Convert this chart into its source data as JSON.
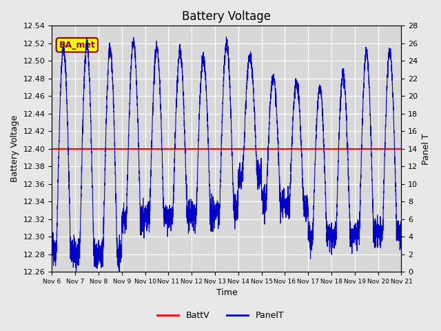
{
  "title": "Battery Voltage",
  "xlabel": "Time",
  "ylabel_left": "Battery Voltage",
  "ylabel_right": "Panel T",
  "ylim_left": [
    12.26,
    12.54
  ],
  "ylim_right": [
    0,
    28
  ],
  "yticks_left": [
    12.26,
    12.28,
    12.3,
    12.32,
    12.34,
    12.36,
    12.38,
    12.4,
    12.42,
    12.44,
    12.46,
    12.48,
    12.5,
    12.52,
    12.54
  ],
  "yticks_right": [
    0,
    2,
    4,
    6,
    8,
    10,
    12,
    14,
    16,
    18,
    20,
    22,
    24,
    26,
    28
  ],
  "xtick_labels": [
    "Nov 6",
    "Nov 7",
    "Nov 8",
    "Nov 9",
    "Nov 10",
    "Nov 11",
    "Nov 12",
    "Nov 13",
    "Nov 14",
    "Nov 15",
    "Nov 16",
    "Nov 17",
    "Nov 18",
    "Nov 19",
    "Nov 20",
    "Nov 21"
  ],
  "battv_value": 12.4,
  "battv_color": "#ff0000",
  "panelt_color": "#0000cc",
  "background_color": "#e8e8e8",
  "plot_bg_color": "#d8d8d8",
  "grid_color": "#ffffff",
  "annotation_text": "BA_met",
  "annotation_bg": "#ffff00",
  "annotation_border": "#8b0000",
  "title_fontsize": 12,
  "label_fontsize": 9,
  "tick_fontsize": 8,
  "peak_heights": [
    25.5,
    26.0,
    25.5,
    26.0,
    25.5,
    25.0,
    24.5,
    26.0,
    24.5,
    22.0,
    21.5,
    21.0,
    22.5,
    25.0,
    25.0
  ],
  "night_mins": [
    2.5,
    2.2,
    2.0,
    6.0,
    6.5,
    6.5,
    6.5,
    7.0,
    11.0,
    8.0,
    7.5,
    4.0,
    4.0,
    4.5,
    4.5
  ]
}
